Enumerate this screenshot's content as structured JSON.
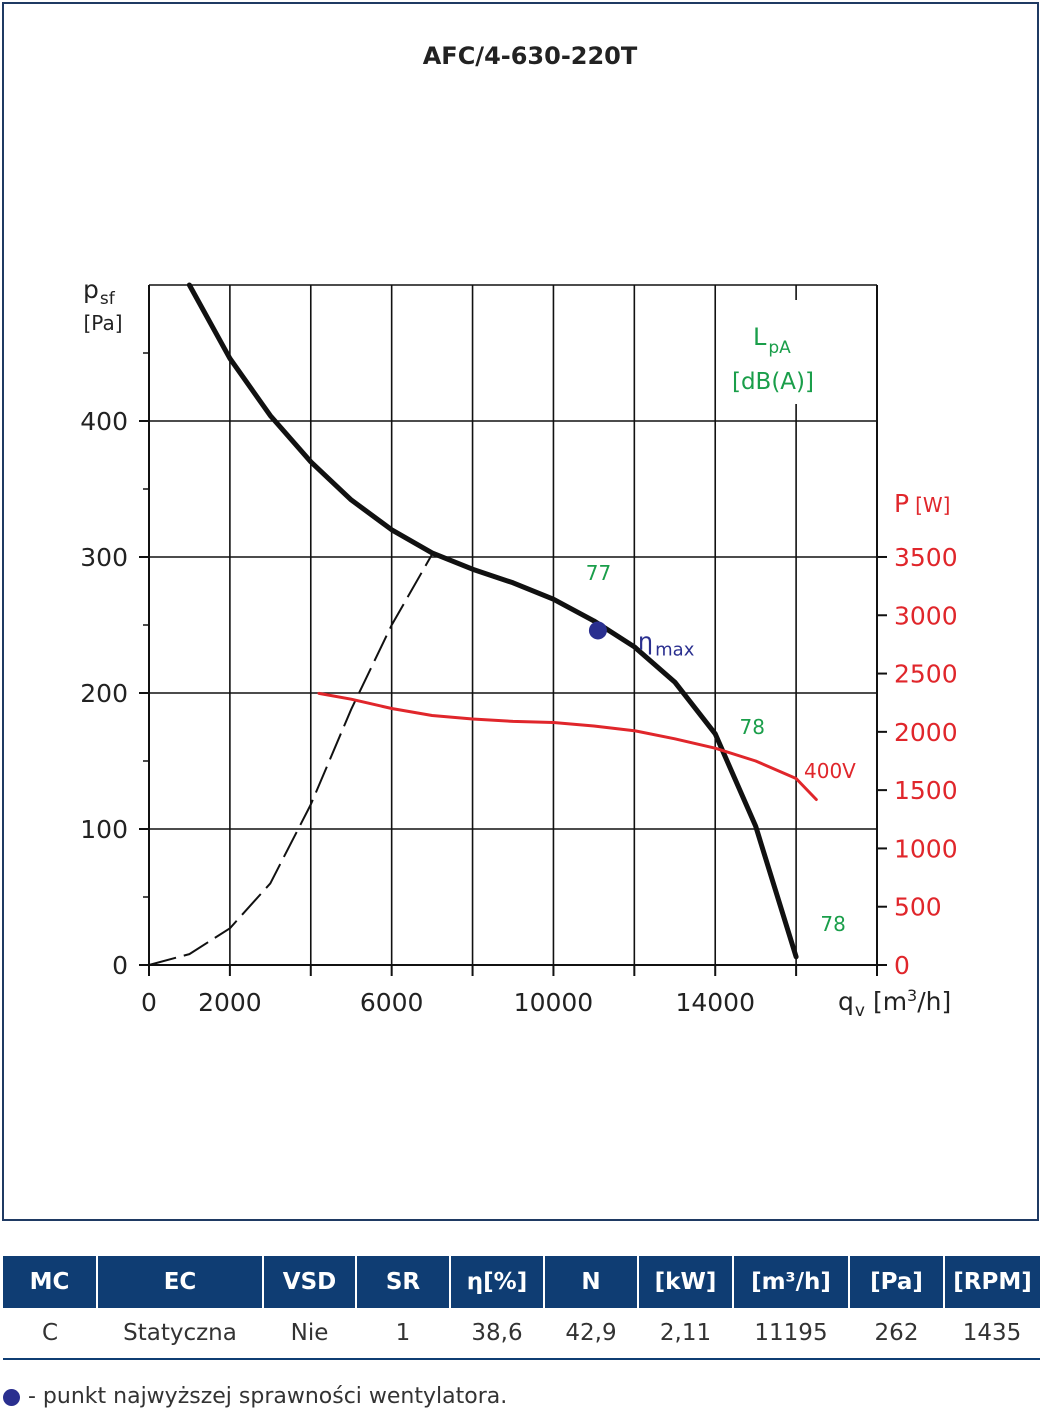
{
  "chart_data": {
    "type": "line",
    "title": "AFC/4-630-220T",
    "xlabel": "q",
    "xlabel_sub": "v",
    "xunit_pre": "[m",
    "xunit_sup": "3",
    "xunit_post": "/h]",
    "ylabel": "p",
    "ylabel_sub": "sf",
    "yunit": "[Pa]",
    "y2label": "P",
    "y2unit": "[W]",
    "noise_label": "L",
    "noise_sub": "pA",
    "noise_unit": "[dB(A)]",
    "xlim": [
      0,
      18000
    ],
    "ylim": [
      0,
      500
    ],
    "y2lim": [
      0,
      5833
    ],
    "x_ticks": [
      0,
      2000,
      6000,
      10000,
      14000
    ],
    "y_ticks": [
      0,
      100,
      200,
      300,
      400
    ],
    "y2_ticks": [
      0,
      500,
      1000,
      1500,
      2000,
      2500,
      3000,
      3500
    ],
    "grid": true,
    "series": [
      {
        "axis": "left",
        "style": "solid",
        "color": "#111111",
        "x": [
          1000,
          2000,
          3000,
          4000,
          5000,
          6000,
          7000,
          8000,
          9000,
          10000,
          11000,
          12000,
          13000,
          14000,
          15000,
          16000
        ],
        "y": [
          500,
          446,
          404,
          370,
          342,
          320,
          303,
          291,
          281,
          269,
          253,
          234,
          208,
          170,
          102,
          6
        ]
      },
      {
        "axis": "left",
        "style": "dashed",
        "color": "#111111",
        "x": [
          0,
          1000,
          2000,
          3000,
          4000,
          5000,
          6000,
          7000
        ],
        "y": [
          0,
          8,
          27,
          60,
          118,
          188,
          250,
          302
        ]
      },
      {
        "name": "400V",
        "axis": "right",
        "style": "solid",
        "color": "#e0262b",
        "x": [
          4200,
          5000,
          6000,
          7000,
          8000,
          9000,
          10000,
          11000,
          12000,
          13000,
          14000,
          15000,
          16000,
          16500
        ],
        "y": [
          2330,
          2280,
          2200,
          2140,
          2110,
          2090,
          2080,
          2050,
          2010,
          1940,
          1860,
          1750,
          1600,
          1420
        ]
      }
    ],
    "eta_point": {
      "x": 11100,
      "y": 246,
      "label": "η",
      "label_sub": "max",
      "color": "#2a2f8f"
    },
    "noise_values": [
      {
        "x": 10800,
        "y": 283,
        "text": "77"
      },
      {
        "x": 14600,
        "y": 170,
        "text": "78"
      },
      {
        "x": 16600,
        "y": 25,
        "text": "78"
      }
    ]
  },
  "table": {
    "headers": [
      "MC",
      "EC",
      "VSD",
      "SR",
      "η[%]",
      "N",
      "[kW]",
      "[m³/h]",
      "[Pa]",
      "[RPM]"
    ],
    "row": [
      "C",
      "Statyczna",
      "Nie",
      "1",
      "38,6",
      "42,9",
      "2,11",
      "11195",
      "262",
      "1435"
    ]
  },
  "footnote": "- punkt najwyższej sprawności wentylatora."
}
